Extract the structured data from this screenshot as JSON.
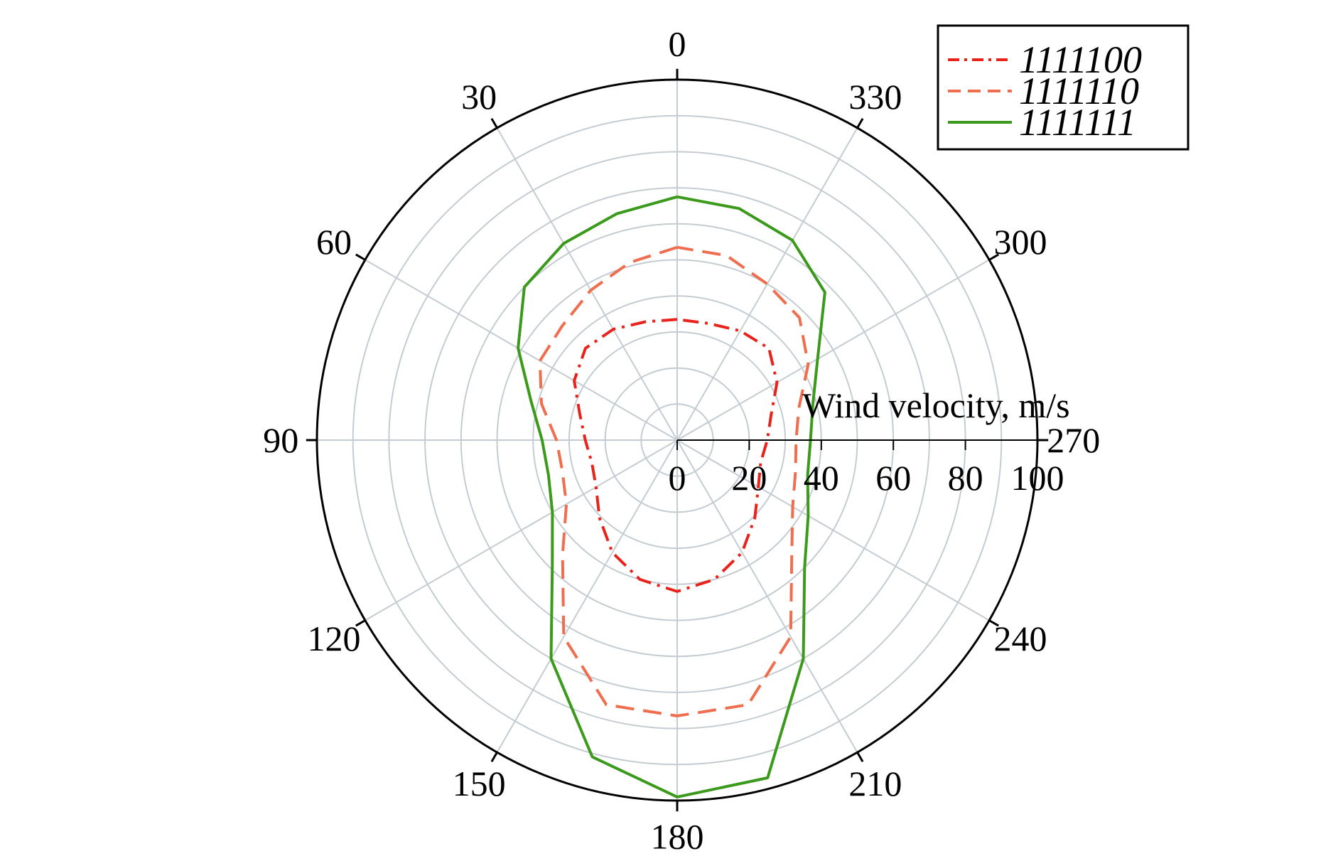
{
  "chart_data": {
    "type": "polar-line",
    "radial_axis_label": "Wind velocity, m/s",
    "radial_range": [
      0,
      100
    ],
    "radial_ticks": [
      0,
      20,
      40,
      60,
      80,
      100
    ],
    "radial_tick_labels": [
      "0",
      "20",
      "40",
      "60",
      "80",
      "100"
    ],
    "angle_ticks": [
      0,
      30,
      60,
      90,
      120,
      150,
      180,
      210,
      240,
      270,
      300,
      330
    ],
    "angle_tick_labels": [
      "0",
      "30",
      "60",
      "90",
      "120",
      "150",
      "180",
      "210",
      "240",
      "270",
      "300",
      "330"
    ],
    "angle_direction": "counterclockwise",
    "angle_zero": "top",
    "grid": true,
    "legend_position": "top-right",
    "angles_deg": [
      0,
      15,
      30,
      45,
      60,
      75,
      90,
      105,
      120,
      135,
      150,
      165,
      180,
      195,
      210,
      225,
      240,
      255,
      270,
      285,
      300,
      315,
      330,
      345
    ],
    "series": [
      {
        "name": "1111100",
        "color": "#e8231c",
        "style": "dash-dot",
        "values": [
          33.5,
          34,
          35.5,
          36,
          33,
          28,
          25.5,
          24.5,
          26,
          30.5,
          36,
          40,
          42,
          40,
          36,
          30.5,
          26,
          24,
          25,
          27,
          32,
          36,
          35,
          33.5
        ]
      },
      {
        "name": "1111110",
        "color": "#ee6e4f",
        "style": "dashed",
        "values": [
          53.5,
          51,
          48,
          45,
          44,
          39,
          33.5,
          33,
          35.5,
          45,
          63,
          76,
          76.5,
          76,
          63,
          45,
          37,
          34,
          33,
          35,
          42,
          48,
          50,
          53
        ]
      },
      {
        "name": "1111111",
        "color": "#3b9a1c",
        "style": "solid",
        "values": [
          67.5,
          65,
          63,
          60,
          51,
          42,
          37.5,
          37,
          40,
          49,
          70,
          91,
          99,
          97,
          70,
          50,
          42,
          37.5,
          37,
          39,
          45,
          58,
          64,
          66.5
        ]
      }
    ]
  }
}
